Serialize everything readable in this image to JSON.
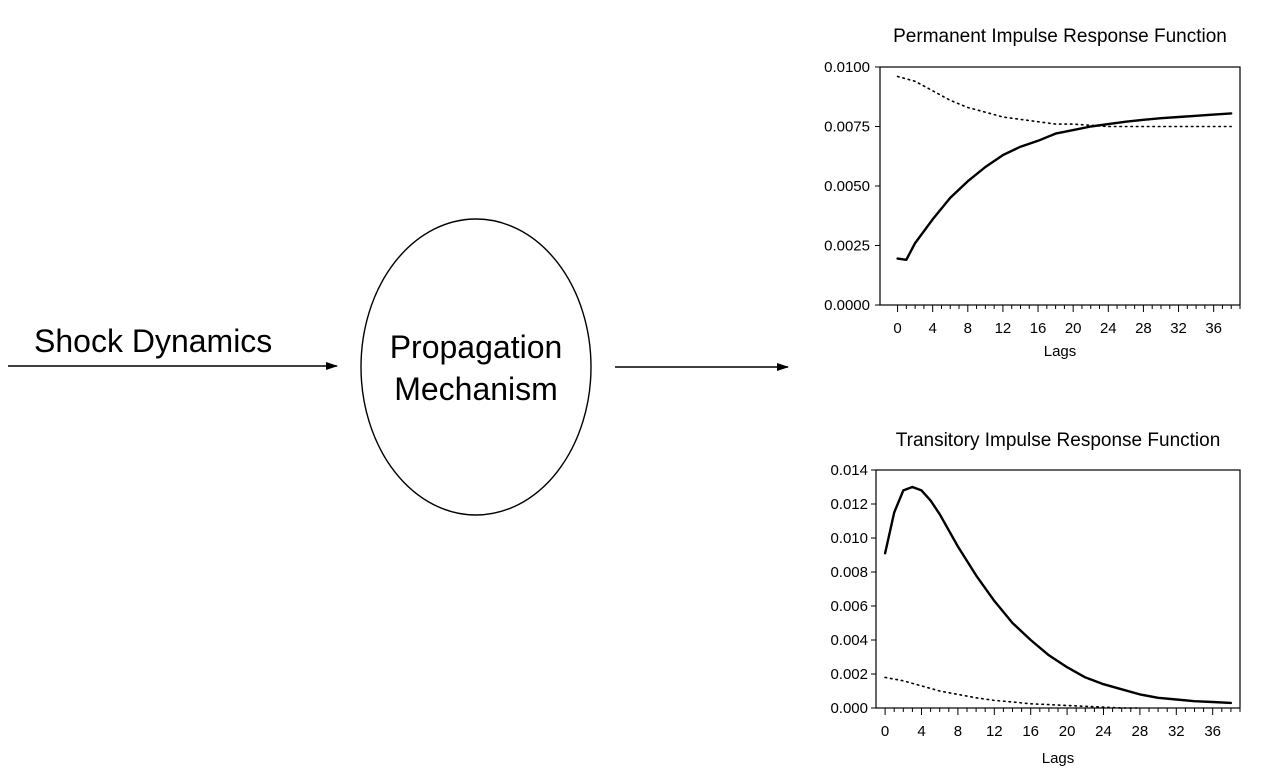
{
  "diagram": {
    "input_label": "Shock Dynamics",
    "mechanism_line1": "Propagation",
    "mechanism_line2": "Mechanism"
  },
  "chart_data": [
    {
      "type": "line",
      "title": "Permanent Impulse Response Function",
      "xlabel": "Lags",
      "ylabel": "",
      "xlim": [
        -2,
        39
      ],
      "ylim": [
        0,
        0.01
      ],
      "xticks": [
        0,
        4,
        8,
        12,
        16,
        20,
        24,
        28,
        32,
        36
      ],
      "yticks": [
        0.0,
        0.0025,
        0.005,
        0.0075,
        0.01
      ],
      "ytick_labels": [
        "0.0000",
        "0.0025",
        "0.0050",
        "0.0075",
        "0.0100"
      ],
      "xtick_labels": [
        "0",
        "4",
        "8",
        "12",
        "16",
        "20",
        "24",
        "28",
        "32",
        "36"
      ],
      "grid": false,
      "series": [
        {
          "style": "solid",
          "x": [
            0,
            1,
            2,
            4,
            6,
            8,
            10,
            12,
            14,
            16,
            18,
            20,
            22,
            24,
            26,
            28,
            30,
            32,
            34,
            36,
            38
          ],
          "values": [
            0.00195,
            0.0019,
            0.0026,
            0.0036,
            0.0045,
            0.0052,
            0.0058,
            0.0063,
            0.00665,
            0.0069,
            0.0072,
            0.00735,
            0.0075,
            0.0076,
            0.0077,
            0.00778,
            0.00785,
            0.0079,
            0.00795,
            0.008,
            0.00805
          ]
        },
        {
          "style": "dotted",
          "x": [
            0,
            2,
            4,
            6,
            8,
            10,
            12,
            14,
            16,
            18,
            20,
            22,
            24,
            26,
            28,
            30,
            32,
            34,
            36,
            38
          ],
          "values": [
            0.0096,
            0.0094,
            0.009,
            0.0086,
            0.0083,
            0.0081,
            0.0079,
            0.0078,
            0.0077,
            0.0076,
            0.0076,
            0.00755,
            0.0075,
            0.0075,
            0.0075,
            0.0075,
            0.0075,
            0.0075,
            0.0075,
            0.0075
          ]
        }
      ]
    },
    {
      "type": "line",
      "title": "Transitory Impulse Response Function",
      "xlabel": "Lags",
      "ylabel": "",
      "xlim": [
        -1,
        39
      ],
      "ylim": [
        0,
        0.014
      ],
      "xticks": [
        0,
        4,
        8,
        12,
        16,
        20,
        24,
        28,
        32,
        36
      ],
      "yticks": [
        0.0,
        0.002,
        0.004,
        0.006,
        0.008,
        0.01,
        0.012,
        0.014
      ],
      "ytick_labels": [
        "0.000",
        "0.002",
        "0.004",
        "0.006",
        "0.008",
        "0.010",
        "0.012",
        "0.014"
      ],
      "xtick_labels": [
        "0",
        "4",
        "8",
        "12",
        "16",
        "20",
        "24",
        "28",
        "32",
        "36"
      ],
      "grid": false,
      "series": [
        {
          "style": "solid",
          "x": [
            0,
            1,
            2,
            3,
            4,
            5,
            6,
            8,
            10,
            12,
            14,
            16,
            18,
            20,
            22,
            24,
            26,
            28,
            30,
            32,
            34,
            36,
            38
          ],
          "values": [
            0.0091,
            0.0115,
            0.0128,
            0.013,
            0.0128,
            0.0122,
            0.0114,
            0.0095,
            0.0078,
            0.0063,
            0.005,
            0.004,
            0.0031,
            0.0024,
            0.0018,
            0.0014,
            0.0011,
            0.0008,
            0.0006,
            0.0005,
            0.0004,
            0.00035,
            0.0003
          ]
        },
        {
          "style": "dotted",
          "x": [
            0,
            2,
            4,
            6,
            8,
            10,
            12,
            14,
            16,
            18,
            20,
            22,
            24,
            26,
            28
          ],
          "values": [
            0.0018,
            0.0016,
            0.0013,
            0.001,
            0.0008,
            0.0006,
            0.00045,
            0.00035,
            0.00025,
            0.0002,
            0.00015,
            0.0001,
            5e-05,
            0.0,
            0.0
          ]
        }
      ]
    }
  ]
}
